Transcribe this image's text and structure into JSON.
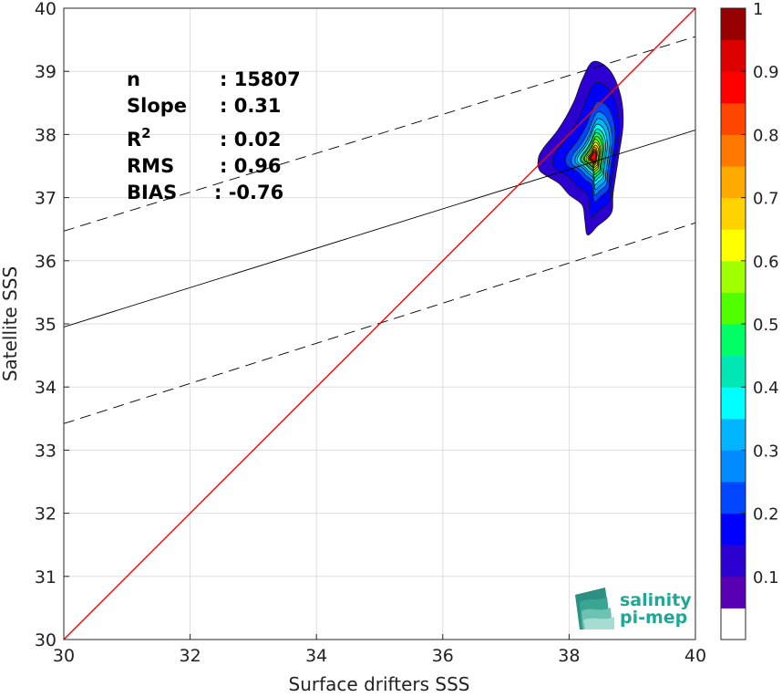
{
  "chart_data": {
    "type": "scatter",
    "xlabel": "Surface drifters SSS",
    "ylabel": "Satellite SSS",
    "xlim": [
      30,
      40
    ],
    "ylim": [
      30,
      40
    ],
    "xticks": [
      "30",
      "32",
      "34",
      "36",
      "38",
      "40"
    ],
    "yticks": [
      "30",
      "31",
      "32",
      "33",
      "34",
      "35",
      "36",
      "37",
      "38",
      "39",
      "40"
    ],
    "grid": true,
    "stats": [
      {
        "label": "n",
        "sep": ": ",
        "value": "15807"
      },
      {
        "label": "Slope",
        "sep": ": ",
        "value": "0.31"
      },
      {
        "label": "R",
        "sup": "2",
        "sep": ": ",
        "value": "0.02"
      },
      {
        "label": "RMS",
        "sep": ": ",
        "value": "0.96"
      },
      {
        "label": "BIAS",
        "sep": ": ",
        "value": "-0.76"
      }
    ],
    "reference_line": {
      "x": [
        30,
        40
      ],
      "y": [
        30,
        40
      ],
      "color": "#ff0000"
    },
    "regression_line": {
      "x": [
        30,
        40
      ],
      "y": [
        34.95,
        38.07
      ],
      "color": "#000000"
    },
    "regression_bounds": [
      {
        "x": [
          30,
          40
        ],
        "y": [
          36.47,
          39.55
        ]
      },
      {
        "x": [
          30,
          40
        ],
        "y": [
          33.42,
          36.6
        ]
      }
    ],
    "density_center": {
      "x": 38.38,
      "y": 37.65
    },
    "density_levels": [
      0.05,
      0.1,
      0.15,
      0.2,
      0.25,
      0.3,
      0.35,
      0.4,
      0.45,
      0.5,
      0.55,
      0.6,
      0.65,
      0.7,
      0.75,
      0.8,
      0.85,
      0.9,
      0.95
    ],
    "colorbar": {
      "range": [
        0,
        1
      ],
      "ticks": [
        "0.1",
        "0.2",
        "0.3",
        "0.4",
        "0.5",
        "0.6",
        "0.7",
        "0.8",
        "0.9",
        "1"
      ],
      "colors": [
        "#ffffff",
        "#5a00b4",
        "#2d00d2",
        "#0000ff",
        "#0046ff",
        "#008cff",
        "#00b4ff",
        "#00ffff",
        "#00e6b4",
        "#00ff64",
        "#50ff00",
        "#a0ff00",
        "#ffff00",
        "#ffd200",
        "#ffaa00",
        "#ff7800",
        "#ff4600",
        "#ff0000",
        "#dc0000",
        "#960000"
      ]
    }
  },
  "logo": {
    "line1": "salinity",
    "line2": "pi-mep"
  }
}
